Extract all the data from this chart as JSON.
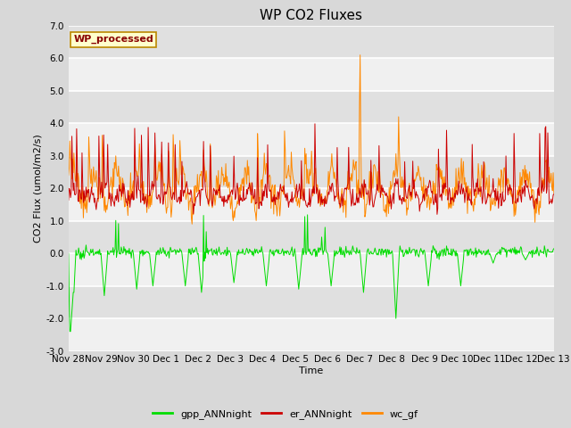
{
  "title": "WP CO2 Fluxes",
  "xlabel": "Time",
  "ylabel": "CO2 Flux (umol/m2/s)",
  "ylim": [
    -3.0,
    7.0
  ],
  "yticks": [
    -3.0,
    -2.0,
    -1.0,
    0.0,
    1.0,
    2.0,
    3.0,
    4.0,
    5.0,
    6.0,
    7.0
  ],
  "n_days": 15,
  "n_per_day": 48,
  "x_tick_labels": [
    "Nov 28",
    "Nov 29",
    "Nov 30",
    "Dec 1",
    "Dec 2",
    "Dec 3",
    "Dec 4",
    "Dec 5",
    "Dec 6",
    "Dec 7",
    "Dec 8",
    "Dec 9",
    "Dec 10",
    "Dec 11",
    "Dec 12",
    "Dec 13"
  ],
  "legend_entries": [
    "gpp_ANNnight",
    "er_ANNnight",
    "wc_gf"
  ],
  "legend_colors": [
    "#00dd00",
    "#cc0000",
    "#ff8800"
  ],
  "annotation_text": "WP_processed",
  "annotation_color": "#880000",
  "annotation_bg": "#ffffcc",
  "annotation_border": "#bb8800",
  "bg_color": "#d8d8d8",
  "plot_bg_light": "#f0f0f0",
  "plot_bg_dark": "#e0e0e0",
  "grid_color": "#ffffff",
  "title_fontsize": 11,
  "label_fontsize": 8,
  "tick_fontsize": 7.5,
  "legend_fontsize": 8
}
